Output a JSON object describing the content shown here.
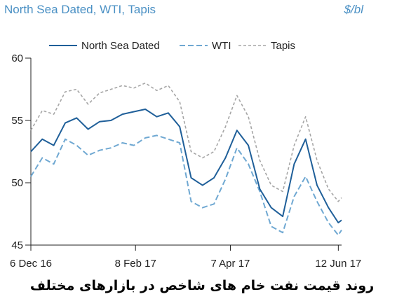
{
  "header": {
    "title": "North Sea Dated, WTI, Tapis",
    "unit": "$/bl"
  },
  "caption": "روند قیمت نفت خام های شاخص در بازارهای مختلف",
  "colors": {
    "north_sea": "#1f5f99",
    "wti": "#6fa8d2",
    "tapis": "#a6a6a6",
    "axis": "#222222",
    "title": "#4a90c4"
  },
  "chart_data": {
    "type": "line",
    "title": "North Sea Dated, WTI, Tapis",
    "ylabel": "$/bl",
    "ylim": [
      45,
      60
    ],
    "yticks": [
      45,
      50,
      55,
      60
    ],
    "xlim": [
      "2016-12-06",
      "2017-06-14"
    ],
    "xticks": [
      "6 Dec 16",
      "8 Feb 17",
      "7 Apr 17",
      "12 Jun 17"
    ],
    "legend": "top",
    "grid": false,
    "series": [
      {
        "name": "North Sea Dated",
        "style": "solid",
        "x": [
          "2016-12-06",
          "2016-12-13",
          "2016-12-20",
          "2016-12-27",
          "2017-01-03",
          "2017-01-10",
          "2017-01-17",
          "2017-01-24",
          "2017-01-31",
          "2017-02-07",
          "2017-02-14",
          "2017-02-21",
          "2017-02-28",
          "2017-03-07",
          "2017-03-14",
          "2017-03-21",
          "2017-03-28",
          "2017-04-04",
          "2017-04-11",
          "2017-04-18",
          "2017-04-25",
          "2017-05-02",
          "2017-05-09",
          "2017-05-16",
          "2017-05-23",
          "2017-05-30",
          "2017-06-06",
          "2017-06-12",
          "2017-06-14"
        ],
        "values": [
          52.5,
          53.5,
          53.0,
          54.8,
          55.2,
          54.3,
          54.9,
          55.0,
          55.5,
          55.7,
          55.9,
          55.3,
          55.6,
          54.5,
          50.4,
          49.8,
          50.4,
          52.0,
          54.2,
          53.0,
          49.5,
          48.0,
          47.3,
          51.5,
          53.5,
          49.8,
          48.0,
          46.8,
          47.0
        ]
      },
      {
        "name": "WTI",
        "style": "dashed",
        "x": [
          "2016-12-06",
          "2016-12-13",
          "2016-12-20",
          "2016-12-27",
          "2017-01-03",
          "2017-01-10",
          "2017-01-17",
          "2017-01-24",
          "2017-01-31",
          "2017-02-07",
          "2017-02-14",
          "2017-02-21",
          "2017-02-28",
          "2017-03-07",
          "2017-03-14",
          "2017-03-21",
          "2017-03-28",
          "2017-04-04",
          "2017-04-11",
          "2017-04-18",
          "2017-04-25",
          "2017-05-02",
          "2017-05-09",
          "2017-05-16",
          "2017-05-23",
          "2017-05-30",
          "2017-06-06",
          "2017-06-12",
          "2017-06-14"
        ],
        "values": [
          50.5,
          52.0,
          51.5,
          53.5,
          53.0,
          52.2,
          52.6,
          52.8,
          53.2,
          53.0,
          53.6,
          53.8,
          53.5,
          53.2,
          48.5,
          48.0,
          48.3,
          50.3,
          52.8,
          51.5,
          49.3,
          46.5,
          46.0,
          48.9,
          50.5,
          48.5,
          46.8,
          45.8,
          46.2
        ]
      },
      {
        "name": "Tapis",
        "style": "dotted",
        "x": [
          "2016-12-06",
          "2016-12-13",
          "2016-12-20",
          "2016-12-27",
          "2017-01-03",
          "2017-01-10",
          "2017-01-17",
          "2017-01-24",
          "2017-01-31",
          "2017-02-07",
          "2017-02-14",
          "2017-02-21",
          "2017-02-28",
          "2017-03-07",
          "2017-03-14",
          "2017-03-21",
          "2017-03-28",
          "2017-04-04",
          "2017-04-11",
          "2017-04-18",
          "2017-04-25",
          "2017-05-02",
          "2017-05-09",
          "2017-05-16",
          "2017-05-23",
          "2017-05-30",
          "2017-06-06",
          "2017-06-12",
          "2017-06-14"
        ],
        "values": [
          54.2,
          55.8,
          55.5,
          57.3,
          57.5,
          56.3,
          57.2,
          57.5,
          57.8,
          57.6,
          58.0,
          57.4,
          57.8,
          56.5,
          52.5,
          52.0,
          52.5,
          54.5,
          57.0,
          55.3,
          51.8,
          49.8,
          49.3,
          53.0,
          55.3,
          51.8,
          49.5,
          48.5,
          48.8
        ]
      }
    ]
  }
}
